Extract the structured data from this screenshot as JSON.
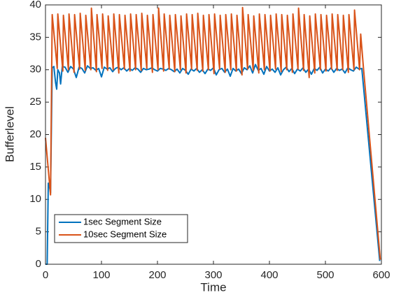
{
  "chart_data": {
    "type": "line",
    "xlabel": "Time",
    "ylabel": "Bufferlevel",
    "xlim": [
      0,
      600
    ],
    "ylim": [
      0,
      40
    ],
    "xticks": [
      0,
      100,
      200,
      300,
      400,
      500,
      600
    ],
    "yticks": [
      0,
      5,
      10,
      15,
      20,
      25,
      30,
      35,
      40
    ],
    "grid": false,
    "legend": "lower left",
    "series": [
      {
        "name": "1sec Segment Size",
        "color": "#0072bd",
        "x": [
          0,
          3,
          5,
          7,
          9,
          12,
          15,
          18,
          20,
          22,
          25,
          27,
          30,
          35,
          40,
          45,
          50,
          55,
          60,
          65,
          70,
          75,
          80,
          85,
          90,
          95,
          100,
          105,
          110,
          115,
          120,
          125,
          130,
          135,
          140,
          145,
          150,
          155,
          160,
          165,
          170,
          175,
          180,
          185,
          190,
          195,
          200,
          205,
          210,
          215,
          220,
          225,
          230,
          235,
          240,
          245,
          250,
          255,
          260,
          265,
          270,
          275,
          280,
          285,
          290,
          295,
          300,
          305,
          310,
          315,
          320,
          325,
          330,
          335,
          340,
          345,
          350,
          355,
          360,
          365,
          370,
          375,
          380,
          385,
          390,
          395,
          400,
          405,
          410,
          415,
          420,
          425,
          430,
          435,
          440,
          445,
          450,
          455,
          460,
          465,
          470,
          475,
          480,
          485,
          490,
          495,
          500,
          505,
          510,
          515,
          520,
          525,
          530,
          535,
          540,
          545,
          550,
          555,
          560,
          565,
          597
        ],
        "values": [
          0,
          0,
          12.5,
          12,
          11,
          30.3,
          30.5,
          28,
          27,
          30,
          29.5,
          27.8,
          30.5,
          30.4,
          29.6,
          30.5,
          30.1,
          28.8,
          30.4,
          30.2,
          29.5,
          30.6,
          30.2,
          30.3,
          29.9,
          30.2,
          28.9,
          30.4,
          30.1,
          30.3,
          29.7,
          30.2,
          30.4,
          30.0,
          30.3,
          29.8,
          30.2,
          29.9,
          30.3,
          30.1,
          29.6,
          30.2,
          30.0,
          30.1,
          30.3,
          30.0,
          29.8,
          30.2,
          30.1,
          29.9,
          30.2,
          30.0,
          29.7,
          30.1,
          29.5,
          30.2,
          29.9,
          29.3,
          30.1,
          29.8,
          30.2,
          29.6,
          30.0,
          29.4,
          30.1,
          29.9,
          30.3,
          29.2,
          30.0,
          30.2,
          29.6,
          30.1,
          29.0,
          30.2,
          29.8,
          30.1,
          29.4,
          30.3,
          30.0,
          30.6,
          29.5,
          30.8,
          29.9,
          30.2,
          29.3,
          30.5,
          29.8,
          30.1,
          29.6,
          30.3,
          29.2,
          30.0,
          30.4,
          29.7,
          30.2,
          29.4,
          30.1,
          29.8,
          30.3,
          29.6,
          30.1,
          29.3,
          30.2,
          29.9,
          30.4,
          29.5,
          30.1,
          29.8,
          30.3,
          29.6,
          30.2,
          29.9,
          30.1,
          29.5,
          30.3,
          30.0,
          29.8,
          30.4,
          30.1,
          30.2,
          0.5
        ]
      },
      {
        "name": "10sec Segment Size",
        "color": "#d95319",
        "x": [
          0,
          9,
          12,
          21,
          22,
          31,
          32,
          41,
          42,
          51,
          52,
          61,
          62,
          71,
          72,
          81,
          82,
          91,
          92,
          101,
          102,
          111,
          112,
          121,
          122,
          131,
          132,
          141,
          142,
          151,
          152,
          161,
          162,
          171,
          172,
          181,
          182,
          191,
          192,
          201,
          202,
          211,
          212,
          221,
          222,
          231,
          232,
          241,
          242,
          251,
          252,
          261,
          262,
          271,
          272,
          281,
          282,
          291,
          292,
          301,
          302,
          311,
          312,
          321,
          322,
          331,
          332,
          341,
          342,
          351,
          352,
          361,
          362,
          371,
          372,
          381,
          382,
          391,
          392,
          401,
          402,
          411,
          412,
          421,
          422,
          431,
          432,
          441,
          442,
          451,
          452,
          461,
          462,
          471,
          472,
          481,
          482,
          491,
          492,
          501,
          502,
          511,
          512,
          521,
          522,
          531,
          532,
          541,
          542,
          551,
          552,
          561,
          563,
          568,
          598
        ],
        "values": [
          19.5,
          10.7,
          38.5,
          30.2,
          38.6,
          29.8,
          38.4,
          30.0,
          38.6,
          29.6,
          38.5,
          30.1,
          38.7,
          29.9,
          38.4,
          30.0,
          39.5,
          29.7,
          38.5,
          30.2,
          38.6,
          29.9,
          38.3,
          30.0,
          38.6,
          29.5,
          38.5,
          30.1,
          38.4,
          29.8,
          38.6,
          30.0,
          38.5,
          29.9,
          38.7,
          30.2,
          38.4,
          29.6,
          38.5,
          30.0,
          39.5,
          29.8,
          38.6,
          30.1,
          38.4,
          29.7,
          38.5,
          30.0,
          38.3,
          29.5,
          38.6,
          30.1,
          38.5,
          29.9,
          38.7,
          29.8,
          38.4,
          30.0,
          38.5,
          29.4,
          38.6,
          30.1,
          38.4,
          29.6,
          38.5,
          30.0,
          38.6,
          29.8,
          38.4,
          29.2,
          39.6,
          30.1,
          38.5,
          29.9,
          38.3,
          29.5,
          38.6,
          30.0,
          38.5,
          29.8,
          38.4,
          30.1,
          38.6,
          29.7,
          38.5,
          30.0,
          38.4,
          29.6,
          38.6,
          30.1,
          39.5,
          29.9,
          38.5,
          28.8,
          38.3,
          29.5,
          38.6,
          30.0,
          38.5,
          29.8,
          38.4,
          30.1,
          38.6,
          29.9,
          38.5,
          30.0,
          38.4,
          29.6,
          38.5,
          30.0,
          39.2,
          30.0,
          35.5,
          30.2,
          0.7
        ]
      }
    ]
  }
}
